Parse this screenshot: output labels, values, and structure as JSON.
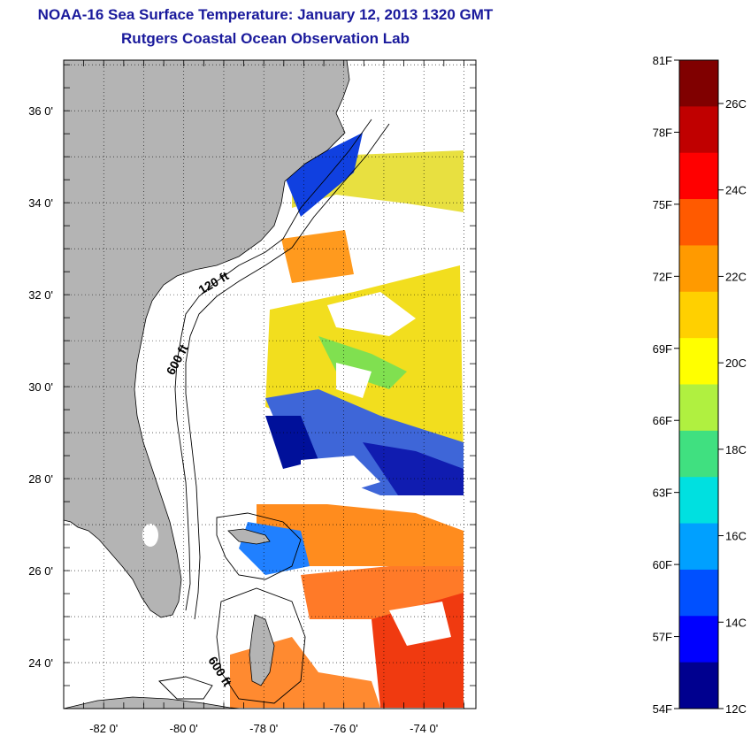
{
  "title": "NOAA-16 Sea Surface Temperature:  January 12, 2013 1320 GMT",
  "subtitle": "Rutgers Coastal Ocean Observation Lab",
  "map": {
    "lon_range": [
      -83,
      -72.7
    ],
    "lat_range": [
      23,
      37.1
    ],
    "x_tick_labels": [
      "-82 0'",
      "-80 0'",
      "-78 0'",
      "-76 0'",
      "-74 0'"
    ],
    "x_tick_values": [
      -82,
      -80,
      -78,
      -76,
      -74
    ],
    "y_tick_labels": [
      "36 0'",
      "34 0'",
      "32 0'",
      "30 0'",
      "28 0'",
      "26 0'",
      "24 0'"
    ],
    "y_tick_values": [
      36,
      34,
      32,
      30,
      28,
      26,
      24
    ],
    "grid": "dotted",
    "land_color": "#b4b4b4",
    "contour_labels": [
      "120 ft",
      "600 ft",
      "600 ft"
    ]
  },
  "colorbar": {
    "fahrenheit_labels": [
      "81F",
      "78F",
      "75F",
      "72F",
      "69F",
      "66F",
      "63F",
      "60F",
      "57F",
      "54F"
    ],
    "celsius_labels": [
      "26C",
      "24C",
      "22C",
      "20C",
      "18C",
      "16C",
      "14C",
      "12C"
    ],
    "colors": [
      "#800000",
      "#c00000",
      "#ff0000",
      "#ff5a00",
      "#ff9a00",
      "#ffd000",
      "#ffff00",
      "#b0f040",
      "#40e080",
      "#00e0e0",
      "#00a0ff",
      "#0050ff",
      "#0000ff",
      "#00008f"
    ]
  }
}
